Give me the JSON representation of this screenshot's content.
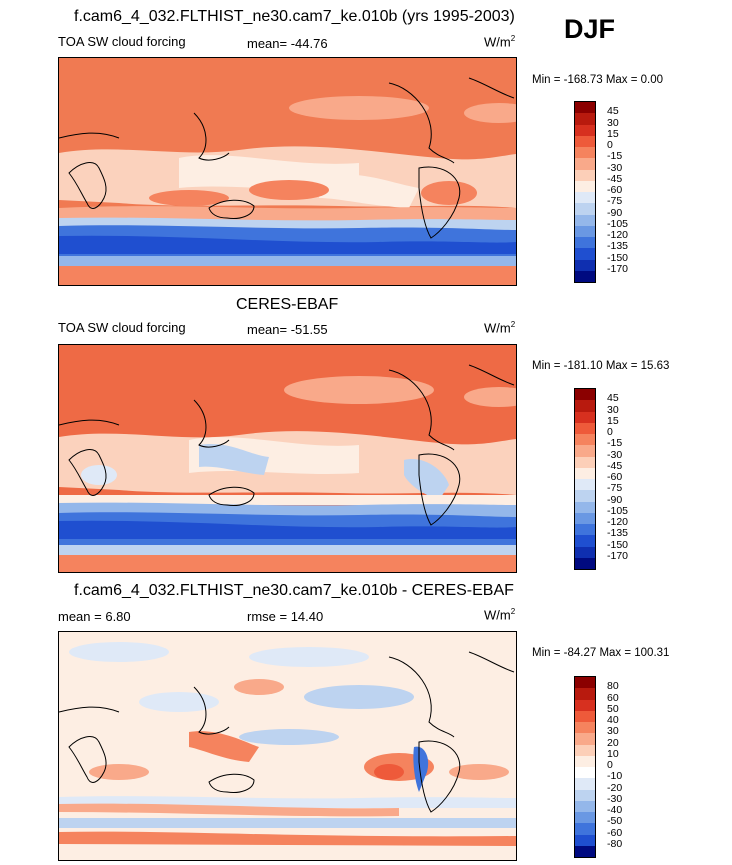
{
  "season": "DJF",
  "panels": [
    {
      "title": "f.cam6_4_032.FLTHIST_ne30.cam7_ke.010b (yrs 1995-2003)",
      "left_label": "TOA SW cloud forcing",
      "center_label": "mean= -44.76",
      "units": "W/m",
      "units_sup": "2",
      "minmax": "Min = -168.73 Max =   0.00",
      "colorbar_labels": [
        "45",
        "30",
        "15",
        "0",
        "-15",
        "-30",
        "-45",
        "-60",
        "-75",
        "-90",
        "-105",
        "-120",
        "-135",
        "-150",
        "-170"
      ],
      "colorbar_colors": [
        "#8b0000",
        "#b81a0e",
        "#d7301f",
        "#ee5a3a",
        "#f5835e",
        "#f9a98a",
        "#fccfb8",
        "#fdeee3",
        "#dfe9f7",
        "#bdd3f0",
        "#94b7ea",
        "#6a98e3",
        "#3f74dc",
        "#1f4fd0",
        "#0f2fb0",
        "#000a80"
      ]
    },
    {
      "title": "CERES-EBAF",
      "left_label": "TOA SW cloud forcing",
      "center_label": "mean= -51.55",
      "units": "W/m",
      "units_sup": "2",
      "minmax": "Min = -181.10 Max =  15.63",
      "colorbar_labels": [
        "45",
        "30",
        "15",
        "0",
        "-15",
        "-30",
        "-45",
        "-60",
        "-75",
        "-90",
        "-105",
        "-120",
        "-135",
        "-150",
        "-170"
      ],
      "colorbar_colors": [
        "#8b0000",
        "#b81a0e",
        "#d7301f",
        "#ee5a3a",
        "#f5835e",
        "#f9a98a",
        "#fccfb8",
        "#fdeee3",
        "#dfe9f7",
        "#bdd3f0",
        "#94b7ea",
        "#6a98e3",
        "#3f74dc",
        "#1f4fd0",
        "#0f2fb0",
        "#000a80"
      ]
    },
    {
      "title": "f.cam6_4_032.FLTHIST_ne30.cam7_ke.010b - CERES-EBAF",
      "left_label": "mean =   6.80",
      "center_label": "rmse =  14.40",
      "units": "W/m",
      "units_sup": "2",
      "minmax": "Min = -84.27 Max = 100.31",
      "colorbar_labels": [
        "80",
        "60",
        "50",
        "40",
        "30",
        "20",
        "10",
        "0",
        "-10",
        "-20",
        "-30",
        "-40",
        "-50",
        "-60",
        "-80"
      ],
      "colorbar_colors": [
        "#8b0000",
        "#b81a0e",
        "#d7301f",
        "#ee5a3a",
        "#f5835e",
        "#f9a98a",
        "#fccfb8",
        "#fdeee3",
        "#ffffff",
        "#dfe9f7",
        "#bdd3f0",
        "#94b7ea",
        "#6a98e3",
        "#3f74dc",
        "#1f4fd0",
        "#000a80"
      ]
    }
  ]
}
